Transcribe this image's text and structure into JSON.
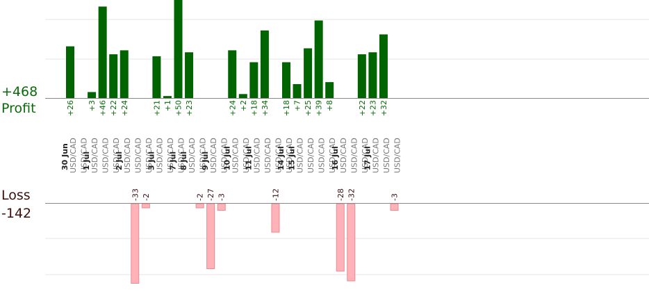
{
  "summary": {
    "profit_total": "+468",
    "profit_label": "Profit",
    "loss_label": "Loss",
    "loss_total": "-142"
  },
  "colors": {
    "profit_bar": "#006400",
    "profit_text": "#0a6b0a",
    "loss_bar": "#ffb3b8",
    "loss_bar_stroke": "#e88a90",
    "loss_text": "#3a0f0f",
    "date_text": "#222222",
    "pair_text": "#777777",
    "grid": "#e6e6e6",
    "axis": "#888888"
  },
  "chart_data": {
    "type": "bar",
    "title": "",
    "xlabel": "",
    "ylabel": "",
    "profit_ylim": [
      0,
      50
    ],
    "loss_ylim": [
      -33,
      0
    ],
    "trades": [
      {
        "date": "30 Jun",
        "pair": "USD/CAD",
        "value": 26
      },
      {
        "date": "",
        "pair": "USD/CAD",
        "value": null
      },
      {
        "date": "1 Jul",
        "pair": "USD/CAD",
        "value": 3
      },
      {
        "date": "",
        "pair": "USD/CAD",
        "value": 46
      },
      {
        "date": "",
        "pair": "USD/CAD",
        "value": 22
      },
      {
        "date": "2 Jul",
        "pair": "USD/CAD",
        "value": 24
      },
      {
        "date": "",
        "pair": "USD/CAD",
        "value": -33
      },
      {
        "date": "",
        "pair": "USD/CAD",
        "value": -2
      },
      {
        "date": "3 Jul",
        "pair": "USD/CAD",
        "value": 21
      },
      {
        "date": "",
        "pair": "USD/CAD",
        "value": 1
      },
      {
        "date": "7 Jul",
        "pair": "USD/CAD",
        "value": 50
      },
      {
        "date": "8 Jul",
        "pair": "USD/CAD",
        "value": 23
      },
      {
        "date": "",
        "pair": "USD/CAD",
        "value": -2
      },
      {
        "date": "9 Jul",
        "pair": "USD/CAD",
        "value": -27
      },
      {
        "date": "",
        "pair": "USD/CAD",
        "value": -3
      },
      {
        "date": "10 Jul",
        "pair": "USD/CAD",
        "value": 24
      },
      {
        "date": "",
        "pair": "USD/CAD",
        "value": 2
      },
      {
        "date": "11 Jul",
        "pair": "USD/CAD",
        "value": 18
      },
      {
        "date": "",
        "pair": "USD/CAD",
        "value": 34
      },
      {
        "date": "",
        "pair": "USD/CAD",
        "value": -12
      },
      {
        "date": "14 Jul",
        "pair": "USD/CAD",
        "value": 18
      },
      {
        "date": "15 Jul",
        "pair": "USD/CAD",
        "value": 7
      },
      {
        "date": "",
        "pair": "USD/CAD",
        "value": 25
      },
      {
        "date": "",
        "pair": "USD/CAD",
        "value": 39
      },
      {
        "date": "",
        "pair": "USD/CAD",
        "value": 8
      },
      {
        "date": "16 Jul",
        "pair": "USD/CAD",
        "value": -28
      },
      {
        "date": "",
        "pair": "USD/CAD",
        "value": -32
      },
      {
        "date": "",
        "pair": "USD/CAD",
        "value": 22
      },
      {
        "date": "17 Jul",
        "pair": "USD/CAD",
        "value": 23
      },
      {
        "date": "",
        "pair": "USD/CAD",
        "value": 32
      },
      {
        "date": "",
        "pair": "USD/CAD",
        "value": -3
      }
    ]
  }
}
